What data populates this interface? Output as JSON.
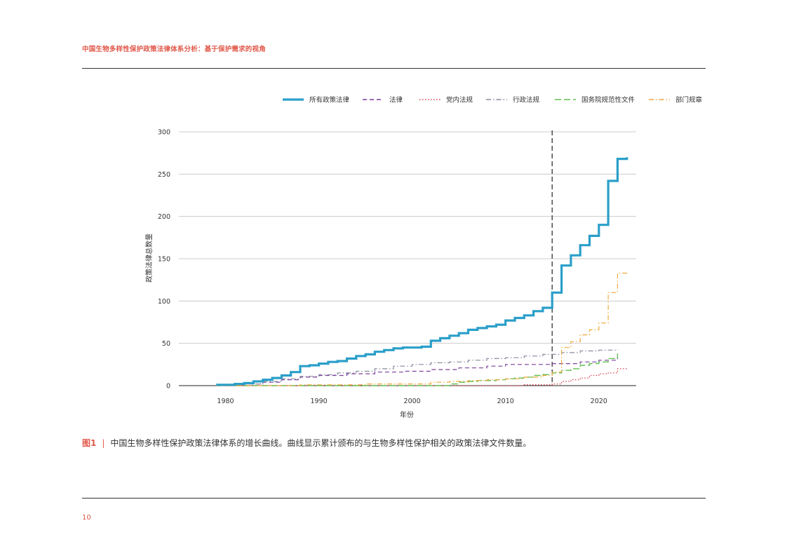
{
  "header": {
    "running_title": "中国生物多样性保护政策法律体系分析：基于保护需求的视角"
  },
  "caption": {
    "label": "图1",
    "separator": "|",
    "text": "中国生物多样性保护政策法律体系的增长曲线。曲线显示累计颁布的与生物多样性保护相关的政策法律文件数量。"
  },
  "footer": {
    "page_number": "10"
  },
  "colors": {
    "accent": "#e0584a",
    "all": "#2a9fc9",
    "law": "#7b3f9e",
    "party": "#d9404a",
    "admin": "#8a8aa0",
    "state_council": "#5fbf4f",
    "dept": "#f0a83c",
    "marker": "#555555",
    "grid": "#cccccc"
  },
  "chart_data": {
    "type": "line",
    "title": "",
    "xlabel": "年份",
    "ylabel": "政策法律总数量",
    "xlim": [
      1975,
      2024
    ],
    "ylim": [
      0,
      300
    ],
    "xticks": [
      1980,
      1990,
      2000,
      2010,
      2020
    ],
    "yticks": [
      0,
      50,
      100,
      150,
      200,
      250,
      300
    ],
    "grid": true,
    "legend_position": "top-right",
    "vertical_marker": 2015,
    "series": [
      {
        "name": "所有政策法律",
        "color_key": "all",
        "style": "solid-thick",
        "x": [
          1979,
          1980,
          1981,
          1982,
          1983,
          1984,
          1985,
          1986,
          1987,
          1988,
          1989,
          1990,
          1991,
          1992,
          1993,
          1994,
          1995,
          1996,
          1997,
          1998,
          1999,
          2000,
          2001,
          2002,
          2003,
          2004,
          2005,
          2006,
          2007,
          2008,
          2009,
          2010,
          2011,
          2012,
          2013,
          2014,
          2015,
          2016,
          2017,
          2018,
          2019,
          2020,
          2021,
          2022,
          2023
        ],
        "y": [
          1,
          1,
          2,
          3,
          5,
          7,
          9,
          12,
          16,
          23,
          24,
          26,
          28,
          29,
          32,
          35,
          37,
          40,
          42,
          44,
          45,
          45,
          46,
          53,
          56,
          59,
          62,
          66,
          68,
          70,
          72,
          77,
          80,
          83,
          88,
          92,
          110,
          142,
          154,
          166,
          177,
          190,
          242,
          268,
          270
        ]
      },
      {
        "name": "法律",
        "color_key": "law",
        "style": "dashed",
        "x": [
          1979,
          1982,
          1984,
          1986,
          1988,
          1990,
          1993,
          1996,
          1999,
          2002,
          2005,
          2008,
          2010,
          2013,
          2015,
          2018,
          2020,
          2022
        ],
        "y": [
          0,
          2,
          4,
          7,
          10,
          12,
          14,
          16,
          17,
          19,
          21,
          23,
          25,
          25,
          26,
          28,
          30,
          33
        ]
      },
      {
        "name": "党内法规",
        "color_key": "party",
        "style": "dotted",
        "x": [
          1979,
          2003,
          2012,
          2015,
          2016,
          2017,
          2018,
          2019,
          2020,
          2021,
          2022,
          2023
        ],
        "y": [
          0,
          0,
          1,
          2,
          5,
          7,
          9,
          12,
          14,
          15,
          20,
          21
        ]
      },
      {
        "name": "行政法规",
        "color_key": "admin",
        "style": "dashdot",
        "x": [
          1979,
          1982,
          1984,
          1986,
          1988,
          1990,
          1992,
          1994,
          1996,
          1998,
          2000,
          2002,
          2004,
          2006,
          2008,
          2010,
          2012,
          2014,
          2016,
          2018,
          2020,
          2022
        ],
        "y": [
          0,
          2,
          5,
          8,
          11,
          13,
          15,
          17,
          20,
          23,
          25,
          27,
          28,
          30,
          32,
          33,
          35,
          37,
          39,
          41,
          42,
          43
        ]
      },
      {
        "name": "国务院规范性文件",
        "color_key": "state_council",
        "style": "longdash",
        "x": [
          1979,
          2003,
          2004,
          2005,
          2006,
          2007,
          2008,
          2009,
          2010,
          2011,
          2012,
          2013,
          2014,
          2015,
          2016,
          2017,
          2018,
          2019,
          2020,
          2021,
          2022
        ],
        "y": [
          0,
          0,
          2,
          4,
          5,
          6,
          6,
          7,
          8,
          9,
          10,
          12,
          13,
          15,
          18,
          20,
          24,
          26,
          28,
          32,
          38
        ]
      },
      {
        "name": "部门规章",
        "color_key": "dept",
        "style": "dashdot",
        "x": [
          1979,
          1988,
          1995,
          2002,
          2004,
          2006,
          2008,
          2010,
          2012,
          2014,
          2015,
          2016,
          2017,
          2018,
          2019,
          2020,
          2021,
          2022,
          2023
        ],
        "y": [
          0,
          1,
          2,
          4,
          5,
          6,
          7,
          8,
          10,
          12,
          16,
          45,
          52,
          60,
          66,
          74,
          110,
          133,
          134
        ]
      }
    ]
  }
}
